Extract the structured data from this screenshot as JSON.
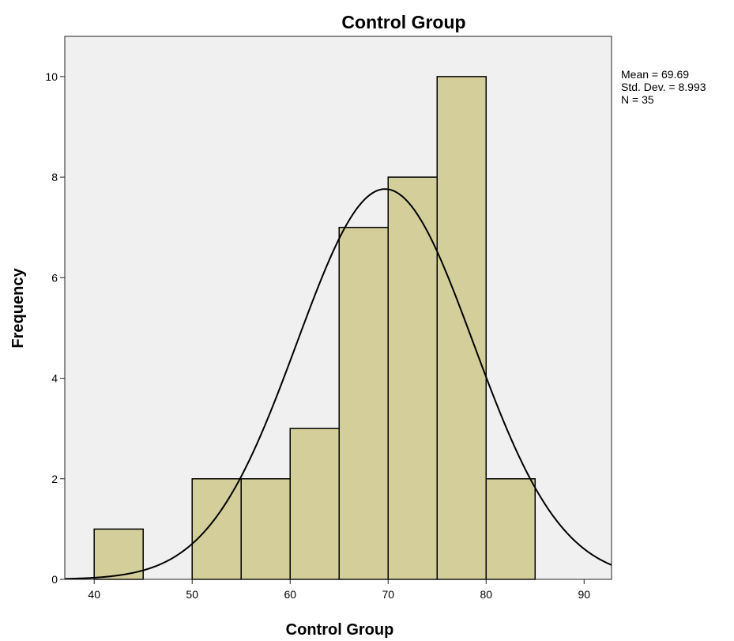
{
  "chart_data": {
    "type": "bar",
    "subtype": "histogram",
    "title": "Control Group",
    "xlabel": "Control Group",
    "ylabel": "Frequency",
    "xlim": [
      37,
      92.8
    ],
    "ylim": [
      0,
      10.8
    ],
    "x_ticks": [
      40,
      50,
      60,
      70,
      80,
      90
    ],
    "y_ticks": [
      0,
      2,
      4,
      6,
      8,
      10
    ],
    "bins": [
      {
        "start": 40,
        "end": 45,
        "count": 1
      },
      {
        "start": 50,
        "end": 55,
        "count": 2
      },
      {
        "start": 55,
        "end": 60,
        "count": 2
      },
      {
        "start": 60,
        "end": 65,
        "count": 3
      },
      {
        "start": 65,
        "end": 70,
        "count": 7
      },
      {
        "start": 70,
        "end": 75,
        "count": 8
      },
      {
        "start": 75,
        "end": 80,
        "count": 10
      },
      {
        "start": 80,
        "end": 85,
        "count": 2
      }
    ],
    "normal_curve": {
      "mean": 69.69,
      "std": 8.993,
      "n": 35,
      "bin_width": 5
    },
    "stats": {
      "mean": "Mean = 69.69",
      "std": "Std. Dev. = 8.993",
      "n": "N = 35"
    },
    "grid": false,
    "legend": "none",
    "colors": {
      "bar_fill": "#d4cf9a",
      "bar_stroke": "#000000",
      "plot_bg": "#f0f0f0",
      "curve": "#000000"
    }
  }
}
